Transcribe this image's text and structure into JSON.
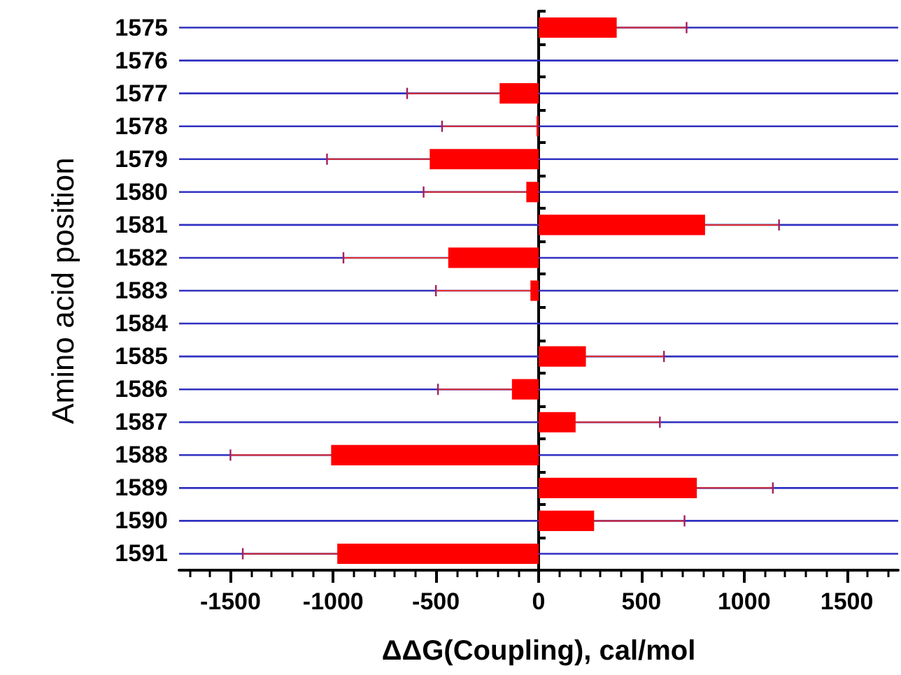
{
  "chart_data": {
    "type": "bar",
    "orientation": "horizontal",
    "xlabel": "ΔΔG(Coupling), cal/mol",
    "ylabel": "Amino acid position",
    "categories": [
      "1575",
      "1576",
      "1577",
      "1578",
      "1579",
      "1580",
      "1581",
      "1582",
      "1583",
      "1584",
      "1585",
      "1586",
      "1587",
      "1588",
      "1589",
      "1590",
      "1591"
    ],
    "values": [
      380,
      0,
      -190,
      -10,
      -530,
      -60,
      810,
      -440,
      -40,
      0,
      230,
      -130,
      180,
      -1010,
      770,
      270,
      -980
    ],
    "errors": [
      [
        380,
        720
      ],
      null,
      [
        -640,
        -190
      ],
      [
        -470,
        -10
      ],
      [
        -1030,
        -530
      ],
      [
        -560,
        -60
      ],
      [
        810,
        1170
      ],
      [
        -950,
        -440
      ],
      [
        -500,
        -40
      ],
      null,
      [
        230,
        610
      ],
      [
        -490,
        -130
      ],
      [
        180,
        590
      ],
      [
        -1500,
        -1010
      ],
      [
        770,
        1140
      ],
      [
        270,
        710
      ],
      [
        -1440,
        -980
      ]
    ],
    "color": "#ff0000",
    "xlim": [
      -1750,
      1750
    ],
    "xticks": [
      -1500,
      -1000,
      -500,
      0,
      500,
      1000,
      1500
    ],
    "grid": "y"
  }
}
